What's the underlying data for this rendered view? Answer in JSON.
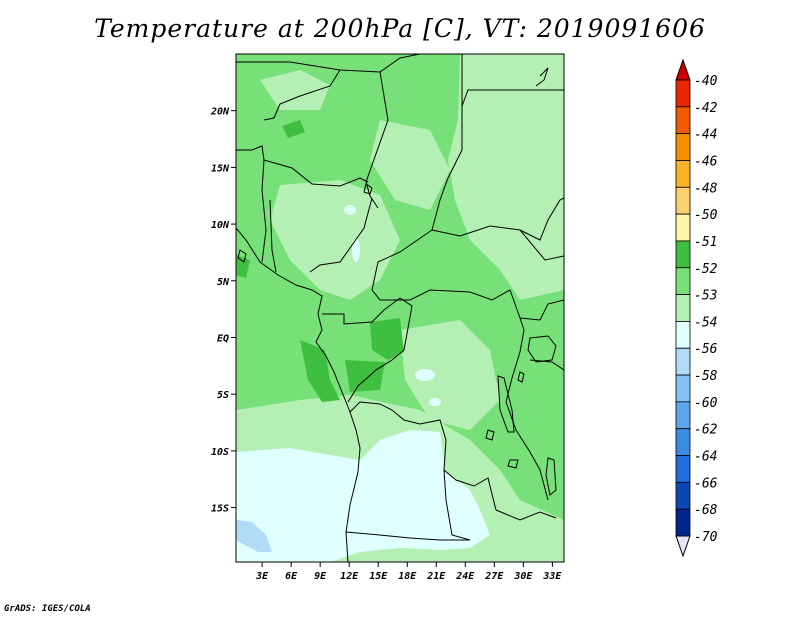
{
  "title": "Temperature at 200hPa [C], VT: 2019091606",
  "footer": "GrADS: IGES/COLA",
  "chart_data": {
    "type": "heatmap",
    "title": "Temperature at 200hPa [C], VT: 2019091606",
    "x_ticks": [
      "3E",
      "6E",
      "9E",
      "12E",
      "15E",
      "18E",
      "21E",
      "24E",
      "27E",
      "30E",
      "33E"
    ],
    "x_tick_values": [
      3,
      6,
      9,
      12,
      15,
      18,
      21,
      24,
      27,
      30,
      33
    ],
    "y_ticks": [
      "20N",
      "15N",
      "10N",
      "5N",
      "EQ",
      "5S",
      "10S",
      "15S"
    ],
    "y_tick_values": [
      20,
      15,
      10,
      5,
      0,
      -5,
      -10,
      -15
    ],
    "xlim": [
      0.3,
      34.2
    ],
    "ylim": [
      -19.8,
      25
    ],
    "colorbar": {
      "labels": [
        "-40",
        "-42",
        "-44",
        "-46",
        "-48",
        "-50",
        "-51",
        "-52",
        "-53",
        "-54",
        "-56",
        "-58",
        "-60",
        "-62",
        "-64",
        "-66",
        "-68",
        "-70"
      ],
      "colors": [
        "#d00000",
        "#e82800",
        "#f05a00",
        "#f88c00",
        "#fab228",
        "#fcd06e",
        "#fef5a8",
        "#3fbf3f",
        "#78e078",
        "#b4f0b4",
        "#e0ffff",
        "#b0dcf8",
        "#86c0f2",
        "#5ea6ec",
        "#3c8ce6",
        "#1e6ee0",
        "#0a46b4",
        "#00268c",
        "#00105a"
      ],
      "arrow_top_color": "#d00000",
      "arrow_bottom_color": "#e6e6fa"
    },
    "regions": [
      {
        "class": "-53 to -52",
        "color": "#78e078",
        "note": "dominant across domain"
      },
      {
        "class": "-54 to -53",
        "color": "#b4f0b4",
        "note": "central/eastern patches, southern Congo"
      },
      {
        "class": "-52 to -51",
        "color": "#3fbf3f",
        "note": "small patches near equator west"
      },
      {
        "class": "-56 to -54",
        "color": "#e0ffff",
        "note": "southern Angola region"
      },
      {
        "class": "-58 to -56",
        "color": "#b0dcf8",
        "note": "small patch southwest corner"
      }
    ]
  }
}
